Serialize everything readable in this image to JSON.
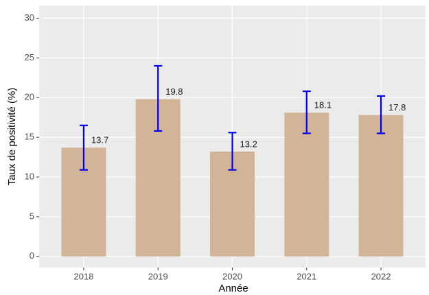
{
  "chart_data": {
    "type": "bar",
    "x_label": "Année",
    "y_label": "Taux de positivité (%)",
    "categories": [
      "2018",
      "2019",
      "2020",
      "2021",
      "2022"
    ],
    "values": [
      13.7,
      19.8,
      13.2,
      18.1,
      17.8
    ],
    "ci_low": [
      10.9,
      15.8,
      10.9,
      15.5,
      15.5
    ],
    "ci_high": [
      16.5,
      24.0,
      15.6,
      20.8,
      20.2
    ],
    "color": "#d2b496",
    "error_color": "#0000ee",
    "ylim": [
      -1.4,
      31.6
    ],
    "yticks": [
      0,
      5,
      10,
      15,
      20,
      25,
      30
    ],
    "grid": true
  }
}
